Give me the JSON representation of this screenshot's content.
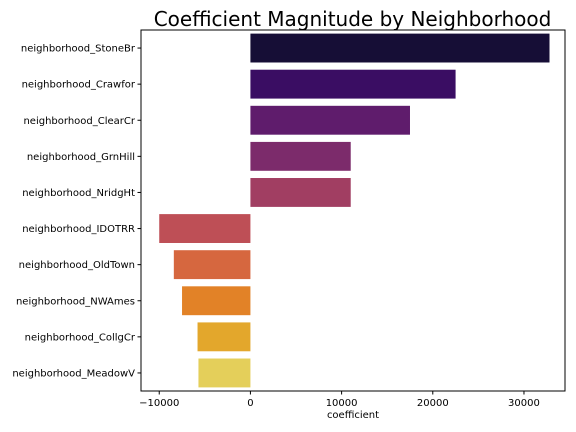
{
  "chart_data": {
    "type": "bar",
    "orientation": "horizontal",
    "title": "Coefficient Magnitude by Neighborhood",
    "xlabel": "coefficient",
    "ylabel": "",
    "xlim": [
      -12000,
      34500
    ],
    "xticks": [
      -10000,
      0,
      10000,
      20000,
      30000
    ],
    "xtick_labels": [
      "−10000",
      "0",
      "10000",
      "20000",
      "30000"
    ],
    "grid": false,
    "categories": [
      "neighborhood_StoneBr",
      "neighborhood_Crawfor",
      "neighborhood_ClearCr",
      "neighborhood_GrnHill",
      "neighborhood_NridgHt",
      "neighborhood_IDOTRR",
      "neighborhood_OldTown",
      "neighborhood_NWAmes",
      "neighborhood_CollgCr",
      "neighborhood_MeadowV"
    ],
    "values": [
      32800,
      22500,
      17500,
      11000,
      11000,
      -10000,
      -8400,
      -7500,
      -5800,
      -5700
    ],
    "colors": [
      "#160e36",
      "#3a0d63",
      "#5f1c6c",
      "#7c2b6b",
      "#a13e62",
      "#be4f56",
      "#d6673f",
      "#e28227",
      "#e3a72c",
      "#e4cf5a"
    ]
  }
}
